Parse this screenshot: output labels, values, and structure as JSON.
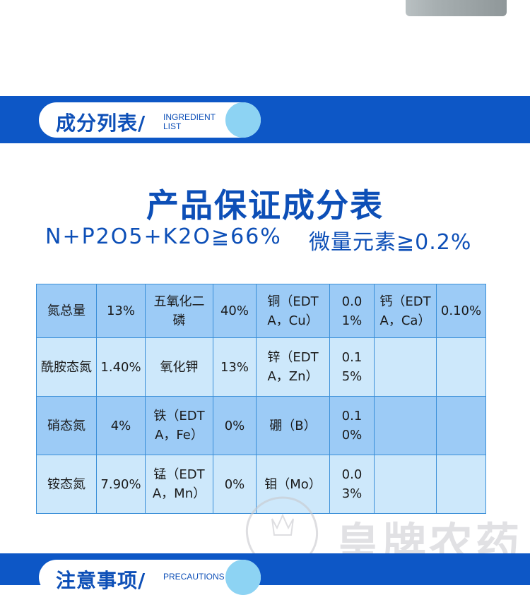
{
  "section_ingredients": {
    "title_cn": "成分列表/",
    "title_en": "INGREDIENT LIST"
  },
  "heading": "产品保证成分表",
  "spec_left": "N+P2O5+K2O≧66%",
  "spec_right": "微量元素≧0.2%",
  "table": [
    [
      "氮总量",
      "13%",
      "五氧化二磷",
      "40%",
      "铜（EDTA，Cu）",
      "0.01%",
      "钙（EDTA，Ca）",
      "0.10%"
    ],
    [
      "酰胺态氮",
      "1.40%",
      "氧化钾",
      "13%",
      "锌（EDTA，Zn）",
      "0.15%",
      "",
      ""
    ],
    [
      "硝态氮",
      "4%",
      "铁（EDTA，Fe）",
      "0%",
      "硼（B）",
      "0.10%",
      "",
      ""
    ],
    [
      "铵态氮",
      "7.90%",
      "锰（EDTA，Mn）",
      "0%",
      "钼（Mo）",
      "0.03%",
      "",
      ""
    ]
  ],
  "section_precautions": {
    "title_cn": "注意事项/",
    "title_en": "PRECAUTIONS"
  },
  "watermark_text": "皇牌农药",
  "colors": {
    "brand_blue": "#0d57c6",
    "title_blue": "#0d4fb7",
    "row_dark": "#9ccbf6",
    "row_light": "#cde8fb",
    "accent_circle": "#8dd3f3"
  }
}
